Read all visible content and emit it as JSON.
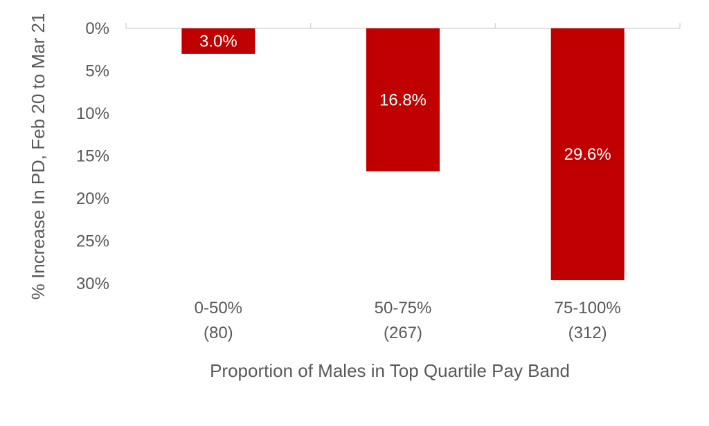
{
  "chart_data": {
    "type": "bar",
    "orientation": "inverted-y",
    "categories": [
      {
        "line1": "0-50%",
        "line2": "(80)"
      },
      {
        "line1": "50-75%",
        "line2": "(267)"
      },
      {
        "line1": "75-100%",
        "line2": "(312)"
      }
    ],
    "values": [
      3.0,
      16.8,
      29.6
    ],
    "data_labels": [
      "3.0%",
      "16.8%",
      "29.6%"
    ],
    "xlabel": "Proportion of Males in Top Quartile Pay Band",
    "ylabel": "% Increase In PD, Feb 20 to Mar 21",
    "ylim": [
      0,
      30
    ],
    "yticks": [
      0,
      5,
      10,
      15,
      20,
      25,
      30
    ],
    "ytick_labels": [
      "0%",
      "5%",
      "10%",
      "15%",
      "20%",
      "25%",
      "30%"
    ],
    "grid": false,
    "legend": "none",
    "colors": {
      "bar": "#c00000",
      "axis": "#d9d9d9",
      "text": "#595959",
      "label": "#ffffff"
    }
  }
}
